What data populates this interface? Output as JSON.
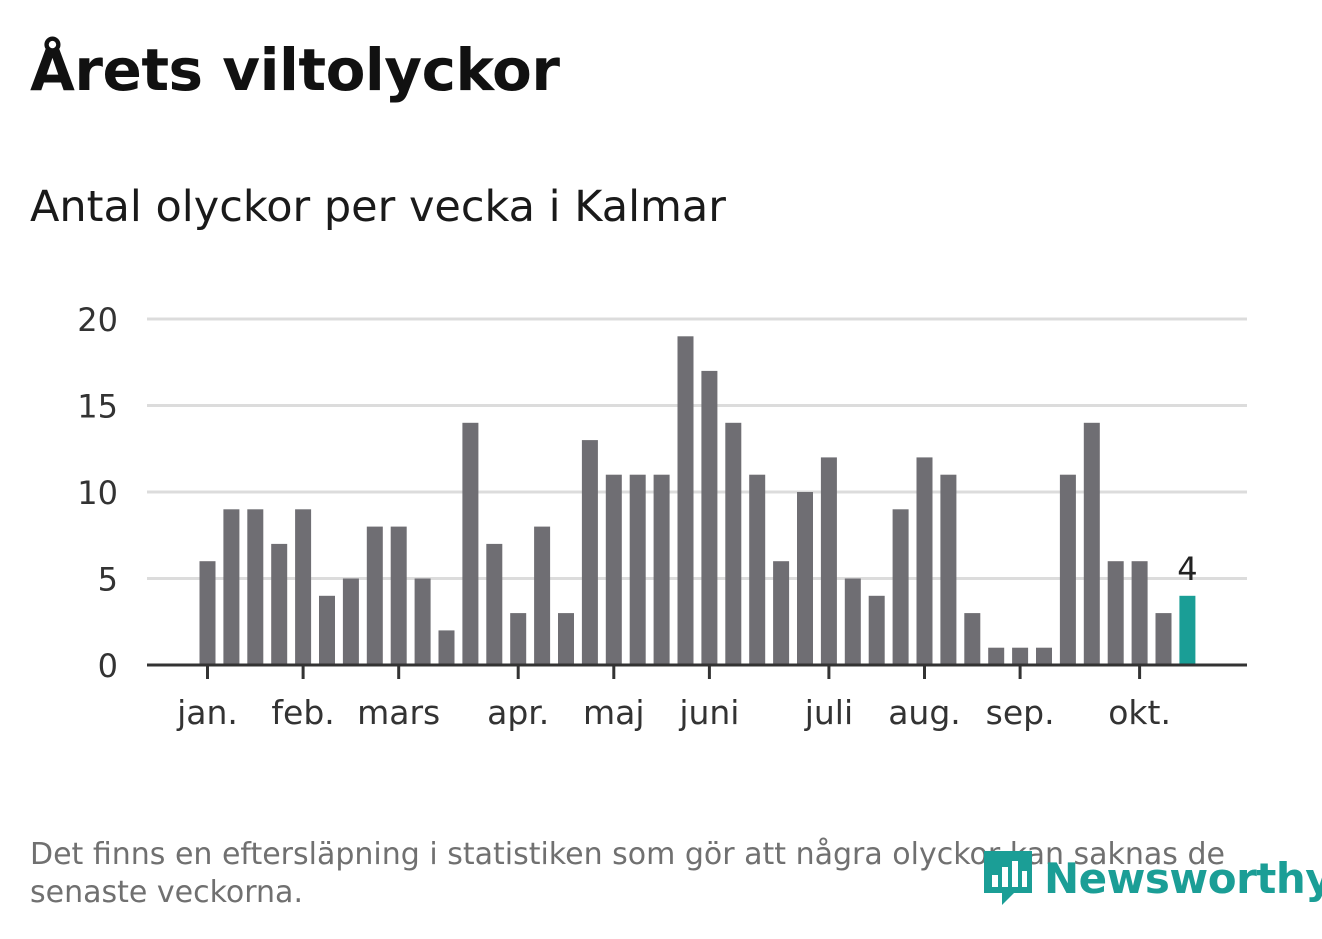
{
  "title": "Årets viltolyckor",
  "subtitle": "Antal olyckor per vecka i Kalmar",
  "note": "Det finns en eftersläpning i statistiken som gör att några olyckor kan saknas de senaste veckorna.",
  "logo": {
    "text": "Newsworthy",
    "icon": "newsworthy-logo-icon",
    "color": "#1b9e96"
  },
  "colors": {
    "bar": "#6f6e73",
    "highlight": "#1a9e96",
    "grid": "#dcdcdc",
    "axis": "#333333"
  },
  "chart_data": {
    "type": "bar",
    "title": "Antal olyckor per vecka i Kalmar",
    "xlabel": "",
    "ylabel": "",
    "ylim": [
      0,
      20
    ],
    "yticks": [
      0,
      5,
      10,
      15,
      20
    ],
    "grid": true,
    "values": [
      6,
      9,
      9,
      7,
      9,
      4,
      5,
      8,
      8,
      5,
      2,
      14,
      7,
      3,
      8,
      3,
      13,
      11,
      11,
      11,
      19,
      17,
      14,
      11,
      6,
      10,
      12,
      5,
      4,
      9,
      12,
      11,
      3,
      1,
      1,
      1,
      11,
      14,
      6,
      6,
      3,
      4
    ],
    "month_labels": [
      {
        "label": "jan.",
        "week": 1
      },
      {
        "label": "feb.",
        "week": 5
      },
      {
        "label": "mars",
        "week": 9
      },
      {
        "label": "apr.",
        "week": 14
      },
      {
        "label": "maj",
        "week": 18
      },
      {
        "label": "juni",
        "week": 22
      },
      {
        "label": "juli",
        "week": 27
      },
      {
        "label": "aug.",
        "week": 31
      },
      {
        "label": "sep.",
        "week": 35
      },
      {
        "label": "okt.",
        "week": 40
      }
    ],
    "highlight_index": 41,
    "highlight_label": "4"
  }
}
